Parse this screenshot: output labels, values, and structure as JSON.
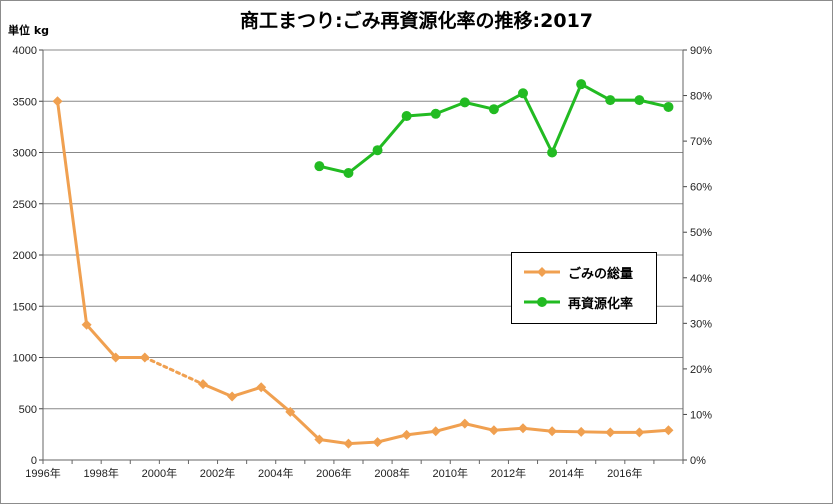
{
  "title": "商工まつり:ごみ再資源化率の推移:2017",
  "unit_label": "単位 kg",
  "colors": {
    "waste": "#F0A050",
    "recycle": "#22BB22",
    "grid": "#888888"
  },
  "chart_data": {
    "type": "line",
    "title": "商工まつり:ごみ再資源化率の推移:2017",
    "x_tick_labels": [
      "1996年",
      "1998年",
      "2000年",
      "2002年",
      "2004年",
      "2006年",
      "2008年",
      "2010年",
      "2012年",
      "2014年",
      "2016年"
    ],
    "x_range": [
      1996,
      2017
    ],
    "y_left": {
      "label": "単位 kg",
      "range": [
        0,
        4000
      ],
      "ticks": [
        "0",
        "500",
        "1000",
        "1500",
        "2000",
        "2500",
        "3000",
        "3500",
        "4000"
      ]
    },
    "y_right": {
      "range": [
        0,
        90
      ],
      "ticks": [
        "0%",
        "10%",
        "20%",
        "30%",
        "40%",
        "50%",
        "60%",
        "70%",
        "80%",
        "90%"
      ]
    },
    "grid": true,
    "legend_position": "center-right",
    "series": [
      {
        "name": "ごみの総量",
        "axis": "left",
        "note": "dotted segment between 1999 and 2001 (no data for 2000)",
        "points": [
          [
            1996,
            3500
          ],
          [
            1997,
            1320
          ],
          [
            1998,
            1000
          ],
          [
            1999,
            1000
          ],
          [
            2001,
            740
          ],
          [
            2002,
            620
          ],
          [
            2003,
            710
          ],
          [
            2004,
            470
          ],
          [
            2005,
            200
          ],
          [
            2006,
            160
          ],
          [
            2007,
            175
          ],
          [
            2008,
            245
          ],
          [
            2009,
            280
          ],
          [
            2010,
            355
          ],
          [
            2011,
            290
          ],
          [
            2012,
            310
          ],
          [
            2013,
            280
          ],
          [
            2014,
            275
          ],
          [
            2015,
            270
          ],
          [
            2016,
            270
          ],
          [
            2017,
            290
          ]
        ]
      },
      {
        "name": "再資源化率",
        "axis": "right",
        "points": [
          [
            2005,
            64.5
          ],
          [
            2006,
            63
          ],
          [
            2007,
            68
          ],
          [
            2008,
            75.5
          ],
          [
            2009,
            76
          ],
          [
            2010,
            78.5
          ],
          [
            2011,
            77
          ],
          [
            2012,
            80.5
          ],
          [
            2013,
            67.5
          ],
          [
            2014,
            82.5
          ],
          [
            2015,
            79
          ],
          [
            2016,
            79
          ],
          [
            2017,
            77.5
          ]
        ]
      }
    ]
  }
}
